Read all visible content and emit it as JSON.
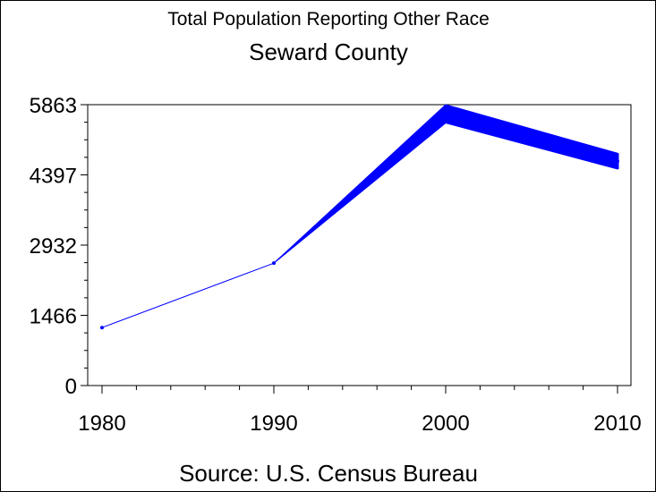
{
  "chart_data": {
    "type": "line",
    "title": "Total Population Reporting Other Race",
    "subtitle": "Seward County",
    "footnote": "Source: U.S. Census Bureau",
    "x_ticks": [
      "1980",
      "1990",
      "2000",
      "2010"
    ],
    "y_ticks": [
      "0",
      "1466",
      "2932",
      "4397",
      "5863"
    ],
    "xlim": [
      1980,
      2010
    ],
    "ylim": [
      0,
      5863
    ],
    "grid": false,
    "series_color": "#0000ff",
    "points": [
      {
        "x": 1980,
        "y": 1210
      },
      {
        "x": 1990,
        "y": 2555
      },
      {
        "x": 2000,
        "y_low": 5480,
        "y_high": 5863
      },
      {
        "x": 2010,
        "y_low": 4520,
        "y_high": 4850
      }
    ]
  }
}
